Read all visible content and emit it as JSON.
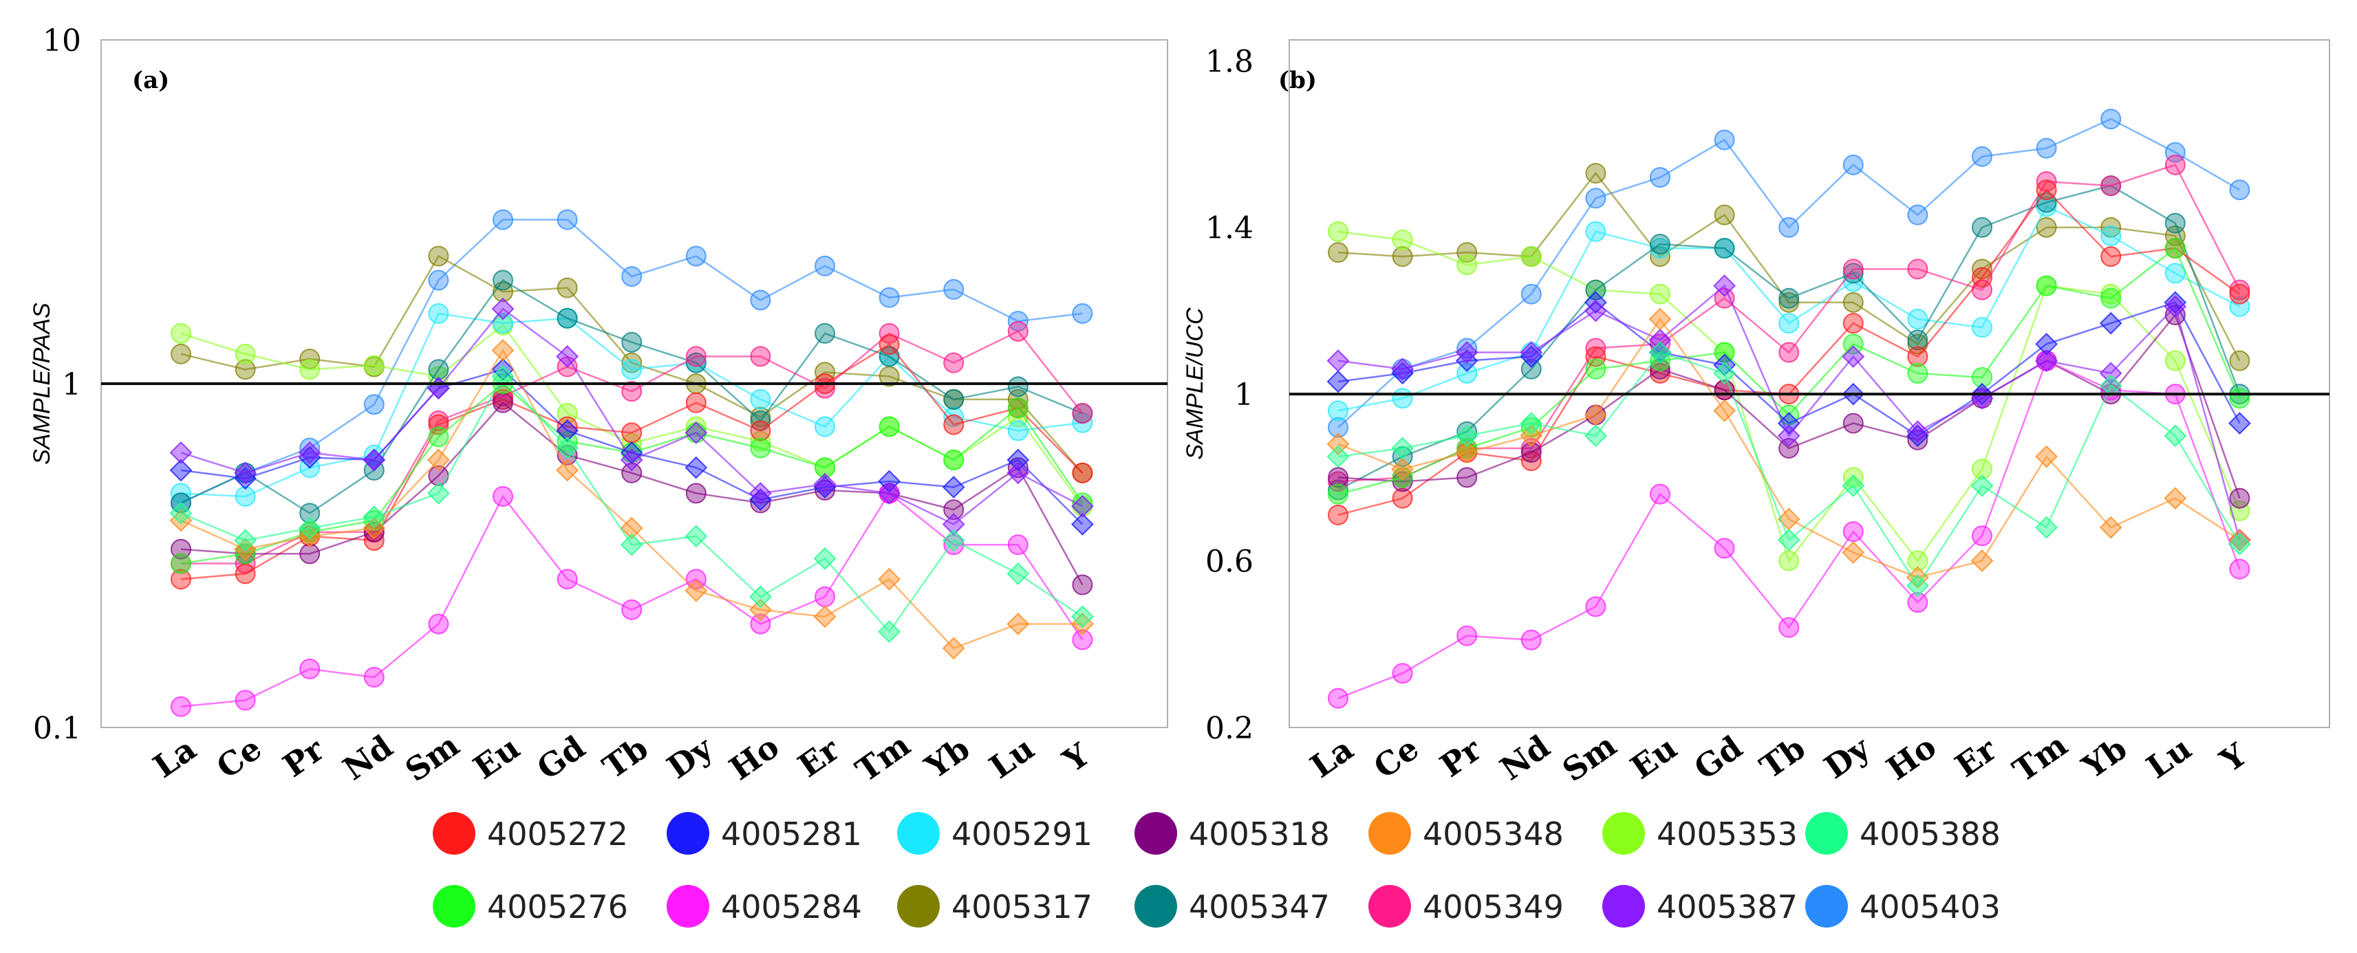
{
  "legend": [
    {
      "name": "4005272",
      "color": "#ff1a1a"
    },
    {
      "name": "4005281",
      "color": "#1a1aff"
    },
    {
      "name": "4005291",
      "color": "#1ae8ff"
    },
    {
      "name": "4005318",
      "color": "#800080"
    },
    {
      "name": "4005348",
      "color": "#ff8a1a"
    },
    {
      "name": "4005353",
      "color": "#8aff1a"
    },
    {
      "name": "4005388",
      "color": "#1aff8a"
    },
    {
      "name": "4005276",
      "color": "#1aff1a"
    },
    {
      "name": "4005284",
      "color": "#ff1aff"
    },
    {
      "name": "4005317",
      "color": "#808000"
    },
    {
      "name": "4005347",
      "color": "#008080"
    },
    {
      "name": "4005349",
      "color": "#ff1a8a"
    },
    {
      "name": "4005387",
      "color": "#8a1aff"
    },
    {
      "name": "4005403",
      "color": "#2a8aff"
    }
  ],
  "chart_data": [
    {
      "type": "line",
      "panel_label": "(a)",
      "ylabel": "SAMPLE/PAAS",
      "xlabel": "",
      "yscale": "log",
      "ylim": [
        0.1,
        10
      ],
      "yticks": [
        "0.1",
        "1",
        "10"
      ],
      "yticks_values": [
        0.1,
        1,
        10
      ],
      "reference_line": 1,
      "categories": [
        "La",
        "Ce",
        "Pr",
        "Nd",
        "Sm",
        "Eu",
        "Gd",
        "Tb",
        "Dy",
        "Ho",
        "Er",
        "Tm",
        "Yb",
        "Lu",
        "Y"
      ],
      "series": [
        {
          "name": "4005403",
          "marker": "circle",
          "values": [
            0.45,
            0.55,
            0.65,
            0.87,
            2.0,
            3.0,
            3.0,
            2.05,
            2.35,
            1.75,
            2.2,
            1.78,
            1.88,
            1.52,
            1.6
          ]
        },
        {
          "name": "4005317",
          "marker": "circle",
          "values": [
            1.22,
            1.1,
            1.18,
            1.12,
            2.35,
            1.85,
            1.9,
            1.15,
            1.0,
            0.8,
            1.08,
            1.05,
            0.9,
            0.9,
            0.55
          ]
        },
        {
          "name": "4005353",
          "marker": "circle",
          "values": [
            1.4,
            1.22,
            1.1,
            1.13,
            1.05,
            1.48,
            0.82,
            0.67,
            0.75,
            0.68,
            0.57,
            0.75,
            0.6,
            0.8,
            0.44
          ]
        },
        {
          "name": "4005291",
          "marker": "circle",
          "values": [
            0.48,
            0.47,
            0.57,
            0.62,
            1.6,
            1.5,
            1.55,
            1.1,
            1.15,
            0.9,
            0.75,
            1.2,
            0.8,
            0.73,
            0.77
          ]
        },
        {
          "name": "4005347",
          "marker": "circle",
          "values": [
            0.45,
            0.55,
            0.42,
            0.56,
            1.1,
            2.0,
            1.55,
            1.32,
            1.15,
            0.78,
            1.4,
            1.2,
            0.9,
            0.98,
            0.82
          ]
        },
        {
          "name": "4005349",
          "marker": "circle",
          "values": [
            0.3,
            0.3,
            0.37,
            0.37,
            0.78,
            0.92,
            1.12,
            0.95,
            1.2,
            1.2,
            0.97,
            1.4,
            1.15,
            1.42,
            0.82
          ]
        },
        {
          "name": "4005272",
          "marker": "circle",
          "values": [
            0.27,
            0.28,
            0.36,
            0.35,
            0.76,
            0.9,
            0.75,
            0.72,
            0.88,
            0.73,
            1.0,
            1.3,
            0.76,
            0.85,
            0.55
          ]
        },
        {
          "name": "4005318",
          "marker": "circle",
          "values": [
            0.33,
            0.32,
            0.32,
            0.37,
            0.54,
            0.88,
            0.62,
            0.55,
            0.48,
            0.45,
            0.49,
            0.48,
            0.43,
            0.57,
            0.26
          ]
        },
        {
          "name": "4005276",
          "marker": "circle",
          "values": [
            0.3,
            0.32,
            0.37,
            0.4,
            0.7,
            1.0,
            0.68,
            0.63,
            0.72,
            0.65,
            0.57,
            0.75,
            0.6,
            0.85,
            0.45
          ]
        },
        {
          "name": "4005284",
          "marker": "circle",
          "values": [
            0.115,
            0.12,
            0.148,
            0.14,
            0.2,
            0.47,
            0.27,
            0.22,
            0.27,
            0.2,
            0.24,
            0.48,
            0.34,
            0.34,
            0.18
          ]
        },
        {
          "name": "4005281",
          "marker": "diamond",
          "values": [
            0.56,
            0.53,
            0.61,
            0.6,
            0.97,
            1.1,
            0.73,
            0.63,
            0.57,
            0.46,
            0.5,
            0.52,
            0.5,
            0.6,
            0.39
          ]
        },
        {
          "name": "4005387",
          "marker": "diamond",
          "values": [
            0.63,
            0.55,
            0.63,
            0.6,
            0.97,
            1.65,
            1.2,
            0.6,
            0.72,
            0.48,
            0.51,
            0.48,
            0.39,
            0.55,
            0.44
          ]
        },
        {
          "name": "4005348",
          "marker": "diamond",
          "values": [
            0.4,
            0.33,
            0.36,
            0.38,
            0.6,
            1.25,
            0.56,
            0.38,
            0.25,
            0.22,
            0.21,
            0.27,
            0.17,
            0.2,
            0.2
          ]
        },
        {
          "name": "4005388",
          "marker": "diamond",
          "values": [
            0.42,
            0.35,
            0.38,
            0.41,
            0.48,
            1.05,
            0.65,
            0.34,
            0.36,
            0.24,
            0.31,
            0.19,
            0.35,
            0.28,
            0.21
          ]
        }
      ]
    },
    {
      "type": "line",
      "panel_label": "(b)",
      "ylabel": "SAMPLE/UCC",
      "xlabel": "",
      "yscale": "linear",
      "ylim": [
        0.2,
        1.85
      ],
      "yticks": [
        "0.2",
        "0.6",
        "1",
        "1.4",
        "1.8"
      ],
      "yticks_values": [
        0.2,
        0.6,
        1.0,
        1.4,
        1.8
      ],
      "reference_line": 1,
      "categories": [
        "La",
        "Ce",
        "Pr",
        "Nd",
        "Sm",
        "Eu",
        "Gd",
        "Tb",
        "Dy",
        "Ho",
        "Er",
        "Tm",
        "Yb",
        "Lu",
        "Y"
      ],
      "series": [
        {
          "name": "4005403",
          "marker": "circle",
          "values": [
            0.92,
            1.06,
            1.11,
            1.24,
            1.47,
            1.52,
            1.61,
            1.4,
            1.55,
            1.43,
            1.57,
            1.59,
            1.66,
            1.58,
            1.49
          ]
        },
        {
          "name": "4005317",
          "marker": "circle",
          "values": [
            1.34,
            1.33,
            1.34,
            1.33,
            1.53,
            1.33,
            1.43,
            1.22,
            1.22,
            1.12,
            1.3,
            1.4,
            1.4,
            1.38,
            1.08
          ]
        },
        {
          "name": "4005353",
          "marker": "circle",
          "values": [
            1.39,
            1.37,
            1.31,
            1.33,
            1.25,
            1.24,
            1.1,
            0.6,
            0.8,
            0.6,
            0.82,
            1.26,
            1.24,
            1.08,
            0.72
          ]
        },
        {
          "name": "4005291",
          "marker": "circle",
          "values": [
            0.96,
            0.99,
            1.05,
            1.1,
            1.39,
            1.35,
            1.35,
            1.17,
            1.27,
            1.18,
            1.16,
            1.45,
            1.38,
            1.29,
            1.21
          ]
        },
        {
          "name": "4005347",
          "marker": "circle",
          "values": [
            0.77,
            0.85,
            0.91,
            1.06,
            1.25,
            1.36,
            1.35,
            1.23,
            1.29,
            1.13,
            1.4,
            1.46,
            1.5,
            1.41,
            1.0
          ]
        },
        {
          "name": "4005349",
          "marker": "circle",
          "values": [
            0.79,
            0.8,
            0.87,
            0.87,
            1.11,
            1.12,
            1.23,
            1.1,
            1.3,
            1.3,
            1.25,
            1.51,
            1.5,
            1.55,
            1.25
          ]
        },
        {
          "name": "4005272",
          "marker": "circle",
          "values": [
            0.71,
            0.75,
            0.86,
            0.84,
            1.09,
            1.05,
            1.01,
            1.0,
            1.17,
            1.09,
            1.28,
            1.49,
            1.33,
            1.35,
            1.24
          ]
        },
        {
          "name": "4005318",
          "marker": "circle",
          "values": [
            0.8,
            0.79,
            0.8,
            0.86,
            0.95,
            1.06,
            1.01,
            0.87,
            0.93,
            0.89,
            0.99,
            1.08,
            1.0,
            1.19,
            0.75
          ]
        },
        {
          "name": "4005276",
          "marker": "circle",
          "values": [
            0.76,
            0.8,
            0.87,
            0.92,
            1.06,
            1.08,
            1.1,
            0.95,
            1.12,
            1.05,
            1.04,
            1.26,
            1.23,
            1.35,
            0.99
          ]
        },
        {
          "name": "4005284",
          "marker": "circle",
          "values": [
            0.27,
            0.33,
            0.42,
            0.41,
            0.49,
            0.76,
            0.63,
            0.44,
            0.67,
            0.5,
            0.66,
            1.08,
            1.01,
            1.0,
            0.58
          ]
        },
        {
          "name": "4005281",
          "marker": "diamond",
          "values": [
            1.03,
            1.05,
            1.08,
            1.09,
            1.22,
            1.1,
            1.07,
            0.93,
            1.0,
            0.9,
            1.0,
            1.12,
            1.17,
            1.22,
            0.93
          ]
        },
        {
          "name": "4005387",
          "marker": "diamond",
          "values": [
            1.08,
            1.06,
            1.1,
            1.1,
            1.2,
            1.13,
            1.26,
            0.9,
            1.09,
            0.91,
            0.99,
            1.08,
            1.05,
            1.21,
            0.65
          ]
        },
        {
          "name": "4005348",
          "marker": "diamond",
          "values": [
            0.88,
            0.82,
            0.86,
            0.9,
            0.95,
            1.18,
            0.96,
            0.7,
            0.62,
            0.56,
            0.6,
            0.85,
            0.68,
            0.75,
            0.65
          ]
        },
        {
          "name": "4005388",
          "marker": "diamond",
          "values": [
            0.85,
            0.87,
            0.9,
            0.93,
            0.9,
            1.1,
            1.05,
            0.65,
            0.78,
            0.54,
            0.78,
            0.68,
            1.02,
            0.9,
            0.64
          ]
        }
      ]
    }
  ]
}
